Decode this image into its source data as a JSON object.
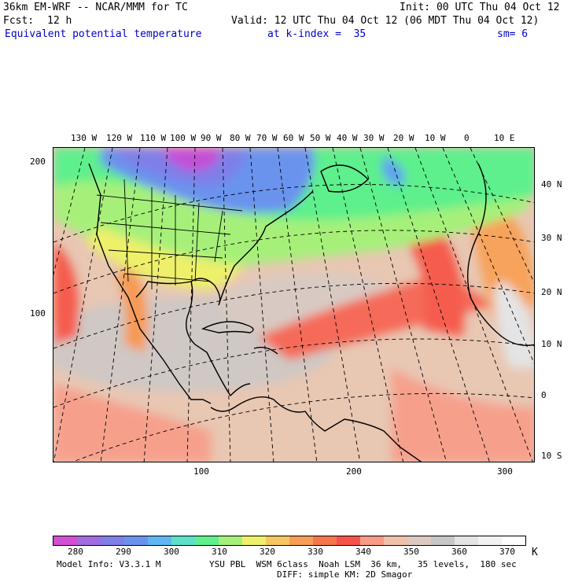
{
  "header": {
    "model_title": "36km EM-WRF -- NCAR/MMM for TC",
    "init": "Init: 00 UTC Thu 04 Oct 12",
    "forecast_label": "Fcst:",
    "forecast_hours": "12 h",
    "valid": "Valid: 12 UTC Thu 04 Oct 12 (06 MDT Thu 04 Oct 12)",
    "field_name": "Equivalent potential temperature",
    "level": "at k-index =  35",
    "smoothing": "sm= 6"
  },
  "map": {
    "lon_labels": [
      "130 W",
      "120 W",
      "110 W",
      "100 W",
      "90 W",
      "80 W",
      "70 W",
      "60 W",
      "50 W",
      "40 W",
      "30 W",
      "20 W",
      "10 W",
      "0",
      "10 E"
    ],
    "lat_labels": [
      "40 N",
      "30 N",
      "20 N",
      "10 N",
      "0",
      "10 S"
    ],
    "grid_y_labels": [
      "200",
      "100"
    ],
    "grid_x_labels": [
      "100",
      "200",
      "300"
    ],
    "field_colors": {
      "coldest": "#c34fd6",
      "cold": "#6f6de0",
      "cool": "#5fa0f0",
      "mild": "#5df0a0",
      "warm": "#f0f06a",
      "orange": "#f7a35c",
      "red": "#f55b4e",
      "salmon": "#f6a08c",
      "tan": "#e8c7b3",
      "gray": "#cfc8c4"
    }
  },
  "colorbar": {
    "colors": [
      "#d24fd2",
      "#a06ce0",
      "#7f7fe8",
      "#6a93ee",
      "#5fb6f2",
      "#5ce0c8",
      "#5df08c",
      "#a6f07a",
      "#eef06a",
      "#f7c75f",
      "#f79d55",
      "#f5754c",
      "#f4524a",
      "#f79a86",
      "#f0c0a8",
      "#dccac0",
      "#c8c6c6",
      "#e4e4e4",
      "#f2f2f2",
      "#ffffff"
    ],
    "tick_labels": [
      "280",
      "290",
      "300",
      "310",
      "320",
      "330",
      "340",
      "350",
      "360",
      "370"
    ],
    "unit": "K"
  },
  "footer": {
    "model_info": "Model Info: V3.3.1 M",
    "physics_line1": "YSU PBL  WSM 6class  Noah LSM  36 km,   35 levels,  180 sec",
    "physics_line2": "DIFF: simple KM: 2D Smagor"
  }
}
